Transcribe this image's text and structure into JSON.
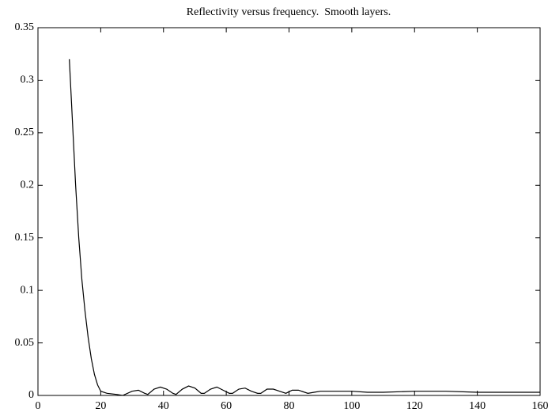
{
  "chart_data": {
    "type": "line",
    "title": "Reflectivity versus frequency.  Smooth layers.",
    "x": [
      10,
      11,
      12,
      13,
      14,
      15,
      16,
      17,
      18,
      19,
      20,
      22,
      25,
      27,
      30,
      32,
      34,
      35,
      37,
      39,
      41,
      43,
      44,
      46,
      48,
      50,
      52,
      53,
      55,
      57,
      59,
      61,
      62,
      64,
      66,
      68,
      70,
      71,
      73,
      75,
      77,
      79,
      81,
      83,
      86,
      88,
      90,
      95,
      100,
      105,
      110,
      120,
      130,
      140,
      150,
      160
    ],
    "series": [
      {
        "name": "Reflectivity",
        "color": "#000000",
        "values": [
          0.32,
          0.26,
          0.2,
          0.15,
          0.11,
          0.08,
          0.055,
          0.035,
          0.02,
          0.01,
          0.004,
          0.002,
          0.001,
          0,
          0.004,
          0.005,
          0.002,
          0.001,
          0.006,
          0.008,
          0.006,
          0.002,
          0.001,
          0.006,
          0.009,
          0.007,
          0.002,
          0.002,
          0.006,
          0.008,
          0.005,
          0.002,
          0.002,
          0.006,
          0.007,
          0.004,
          0.002,
          0.002,
          0.006,
          0.006,
          0.004,
          0.002,
          0.005,
          0.005,
          0.002,
          0.003,
          0.004,
          0.004,
          0.004,
          0.003,
          0.003,
          0.004,
          0.004,
          0.003,
          0.003,
          0.003
        ]
      }
    ],
    "xlim": [
      0,
      160
    ],
    "xticks": [
      0,
      20,
      40,
      60,
      80,
      100,
      120,
      140,
      160
    ],
    "ylim": [
      0,
      0.35
    ],
    "yticks": [
      0,
      0.05,
      0.1,
      0.15,
      0.2,
      0.25,
      0.3,
      0.35
    ],
    "grid": false
  }
}
